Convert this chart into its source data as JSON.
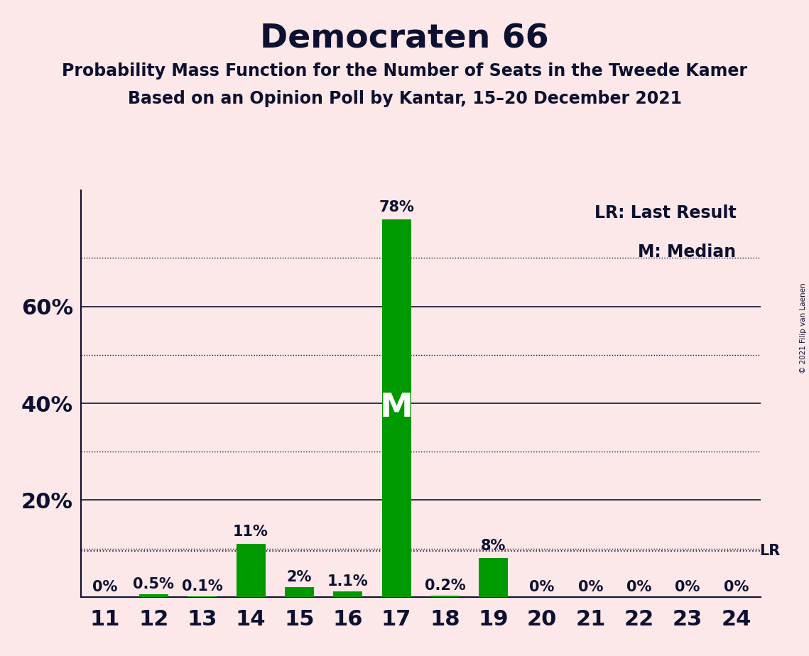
{
  "title": "Democraten 66",
  "subtitle1": "Probability Mass Function for the Number of Seats in the Tweede Kamer",
  "subtitle2": "Based on an Opinion Poll by Kantar, 15–20 December 2021",
  "copyright": "© 2021 Filip van Laenen",
  "categories": [
    11,
    12,
    13,
    14,
    15,
    16,
    17,
    18,
    19,
    20,
    21,
    22,
    23,
    24
  ],
  "values": [
    0.0,
    0.5,
    0.1,
    11.0,
    2.0,
    1.1,
    78.0,
    0.2,
    8.0,
    0.0,
    0.0,
    0.0,
    0.0,
    0.0
  ],
  "labels": [
    "0%",
    "0.5%",
    "0.1%",
    "11%",
    "2%",
    "1.1%",
    "78%",
    "0.2%",
    "8%",
    "0%",
    "0%",
    "0%",
    "0%",
    "0%"
  ],
  "bar_color": "#009900",
  "background_color": "#fce8e8",
  "median_seat": 17,
  "median_label": "M",
  "lr_value": 9.5,
  "legend_lr": "LR: Last Result",
  "legend_m": "M: Median",
  "ylim": [
    0,
    84
  ],
  "yticks": [
    20,
    40,
    60
  ],
  "ytick_labels": [
    "20%",
    "40%",
    "60%"
  ],
  "dotted_gridlines": [
    10,
    30,
    50,
    70
  ],
  "solid_gridlines": [
    20,
    40,
    60
  ],
  "title_fontsize": 34,
  "subtitle_fontsize": 17,
  "axis_fontsize": 22,
  "label_fontsize": 15,
  "median_fontsize": 34,
  "text_color": "#0d1030"
}
